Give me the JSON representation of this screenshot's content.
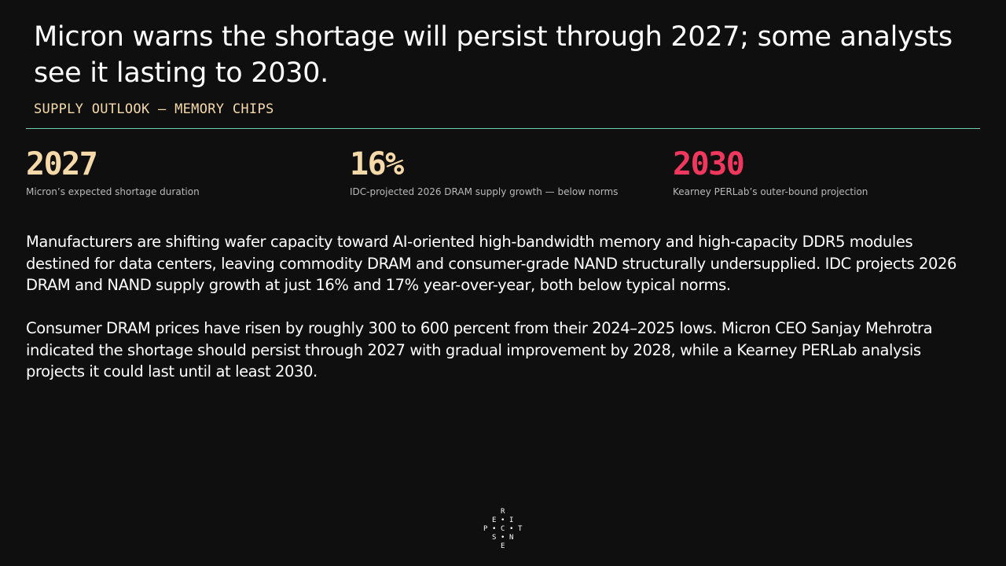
{
  "slide": {
    "title": "Micron warns the shortage will persist through 2027; some analysts see it lasting to 2030.",
    "subtitle": "SUPPLY OUTLOOK — MEMORY CHIPS",
    "rule_color": "#6fd3ae"
  },
  "stats": [
    {
      "value": "2027",
      "caption": "Micron’s expected shortage duration",
      "color": "#f5d9a8"
    },
    {
      "value": "16%",
      "caption": "IDC-projected 2026 DRAM supply growth — below norms",
      "color": "#f5d9a8"
    },
    {
      "value": "2030",
      "caption": "Kearney PERLab’s outer-bound projection",
      "color": "#f0385e"
    }
  ],
  "body": {
    "paragraph_1": "Manufacturers are shifting wafer capacity toward AI-oriented high-bandwidth memory and high-capacity DDR5 modules destined for data centers, leaving commodity DRAM and consumer-grade NAND structurally undersupplied. IDC projects 2026 DRAM and NAND supply growth at just 16% and 17% year-over-year, both below typical norms.",
    "paragraph_2": "Consumer DRAM prices have risen by roughly 300 to 600 percent from their 2024–2025 lows. Micron CEO Sanjay Mehrotra indicated the shortage should persist through 2027 with gradual improvement by 2028, while a Kearney PERLab analysis projects it could last until at least 2030."
  },
  "logo": {
    "letters": [
      "R",
      "E",
      "•",
      "I",
      "P",
      "•",
      "C",
      "•",
      "T",
      "S",
      "•",
      "N",
      "E"
    ]
  }
}
